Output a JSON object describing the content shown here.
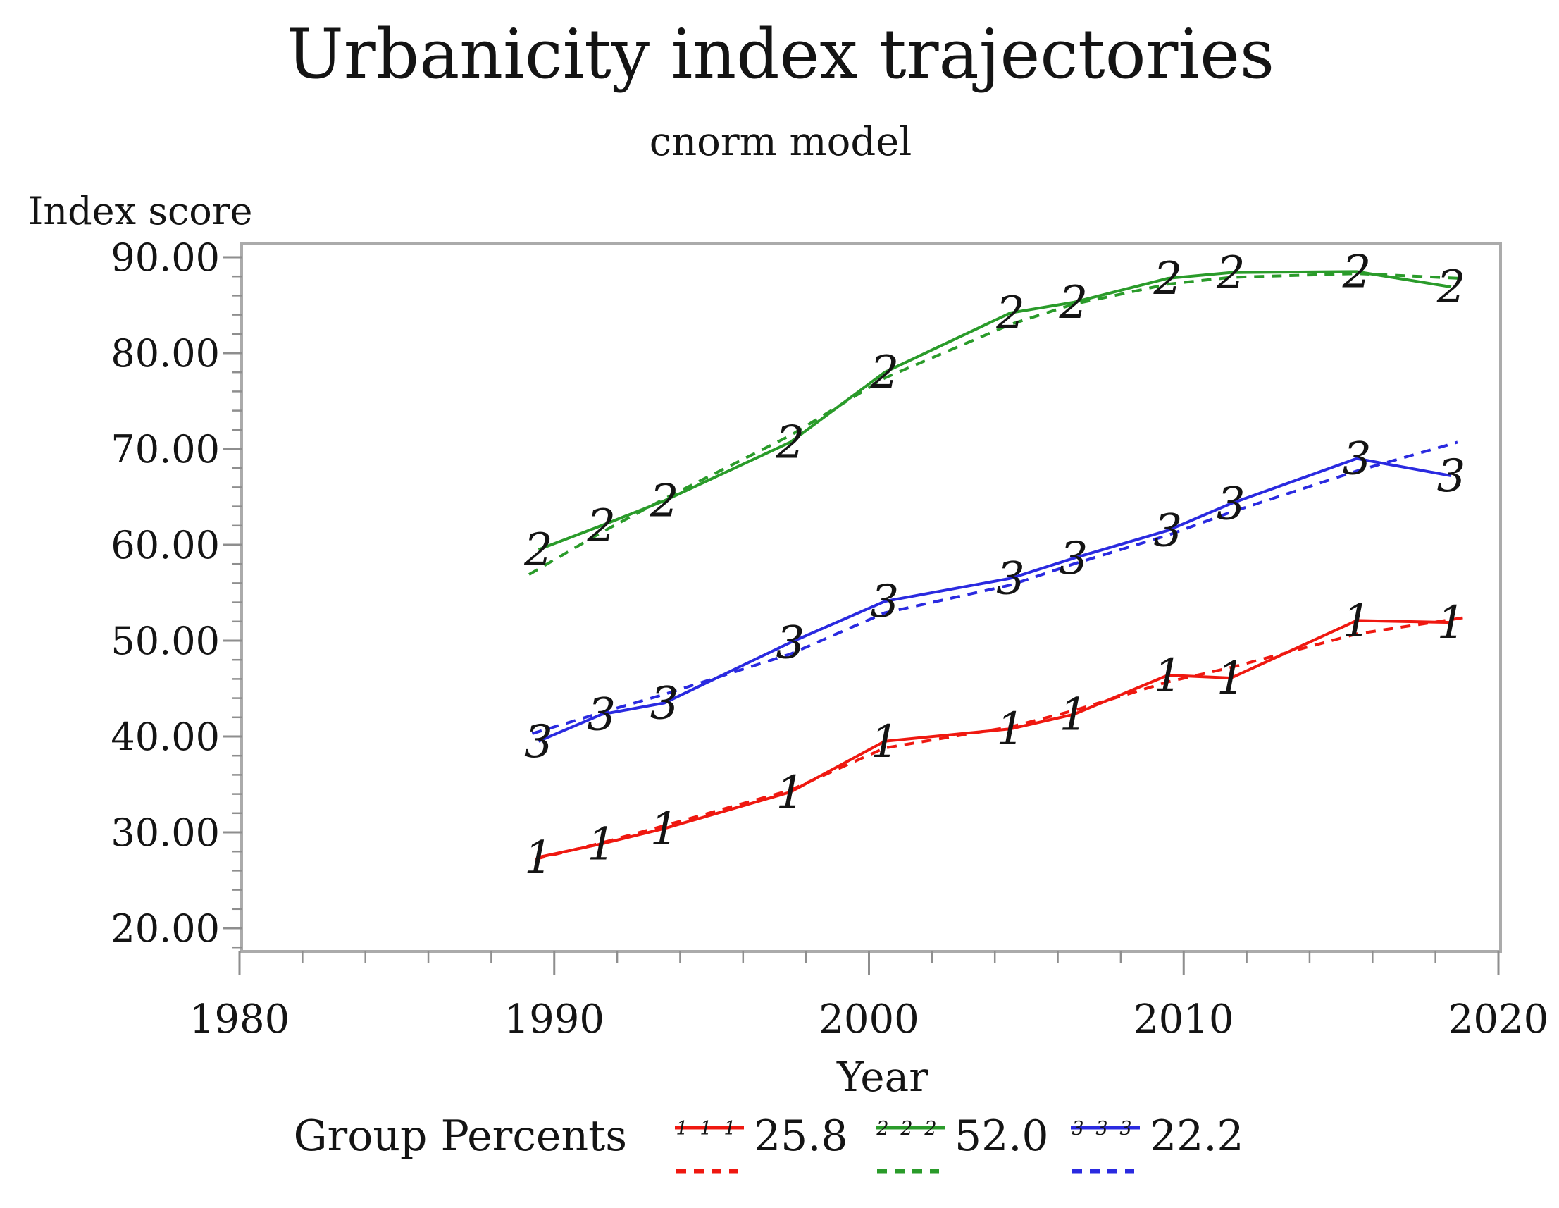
{
  "chart_data": {
    "type": "line",
    "title": "Urbanicity index trajectories",
    "subtitle": "cnorm model",
    "xlabel": "Year",
    "ylabel": "Index score",
    "xlim": [
      1980,
      2020
    ],
    "ylim": [
      17.5,
      91.5
    ],
    "grid": "off",
    "legend_position": "bottom",
    "x_axis": {
      "tick_labels": [
        "1980",
        "1990",
        "2000",
        "2010",
        "2020"
      ],
      "tick_values": [
        1980,
        1990,
        2000,
        2010,
        2020
      ],
      "minor_step": 2,
      "minor_start": 1982,
      "minor_end": 2018
    },
    "y_axis": {
      "tick_labels": [
        "90.00",
        "80.00",
        "70.00",
        "60.00",
        "50.00",
        "40.00",
        "30.00",
        "20.00"
      ],
      "tick_values": [
        90,
        80,
        70,
        60,
        50,
        40,
        30,
        20
      ],
      "minor_step": 2,
      "minor_start": 18,
      "minor_end": 88
    },
    "legend": {
      "label": "Group Percents",
      "entries": [
        {
          "group": "1",
          "percent": "25.8",
          "color": "#ef1810"
        },
        {
          "group": "2",
          "percent": "52.0",
          "color": "#2a9b2a"
        },
        {
          "group": "3",
          "percent": "22.2",
          "color": "#2a2ae0"
        }
      ]
    },
    "series": [
      {
        "name": "Group 1 observed",
        "marker": "1",
        "color": "#ef1810",
        "group_percent": 25.8,
        "observed": {
          "x": [
            1989.5,
            1991.5,
            1993.5,
            1997.5,
            2000.5,
            2004.5,
            2006.5,
            2009.5,
            2011.5,
            2015.5,
            2018.5
          ],
          "y": [
            27.4,
            28.8,
            30.4,
            34.2,
            39.5,
            40.8,
            42.3,
            46.4,
            46.1,
            52.1,
            51.9
          ]
        },
        "fitted": {
          "x": [
            1989.4,
            1991.5,
            1993.5,
            1997.5,
            2000.5,
            2004.5,
            2006.5,
            2009.5,
            2011.5,
            2015.5,
            2018.9
          ],
          "y": [
            27.2,
            28.9,
            30.7,
            34.4,
            38.8,
            41.0,
            42.7,
            45.7,
            47.2,
            50.7,
            52.4
          ]
        }
      },
      {
        "name": "Group 2 observed",
        "marker": "2",
        "color": "#2a9b2a",
        "group_percent": 52.0,
        "observed": {
          "x": [
            1989.5,
            1991.5,
            1993.5,
            1997.5,
            2000.5,
            2004.5,
            2006.5,
            2009.5,
            2011.5,
            2015.5,
            2018.5
          ],
          "y": [
            59.5,
            62.0,
            64.6,
            70.7,
            78.0,
            84.2,
            85.3,
            87.8,
            88.4,
            88.5,
            86.9
          ]
        },
        "fitted": {
          "x": [
            1989.2,
            1991.5,
            1993.5,
            1997.5,
            2000.5,
            2004.5,
            2006.5,
            2009.5,
            2011.5,
            2015.5,
            2018.8
          ],
          "y": [
            56.9,
            61.3,
            64.8,
            71.4,
            77.4,
            83.0,
            85.1,
            87.2,
            87.9,
            88.3,
            87.8
          ]
        }
      },
      {
        "name": "Group 3 observed",
        "marker": "3",
        "color": "#2a2ae0",
        "group_percent": 22.2,
        "observed": {
          "x": [
            1989.5,
            1991.5,
            1993.5,
            1997.5,
            2000.5,
            2004.5,
            2006.5,
            2009.5,
            2011.5,
            2015.5,
            2018.5
          ],
          "y": [
            39.5,
            42.3,
            43.5,
            49.8,
            54.1,
            56.5,
            58.6,
            61.5,
            64.3,
            69.0,
            67.2
          ]
        },
        "fitted": {
          "x": [
            1989.3,
            1991.5,
            1993.5,
            1997.5,
            2000.5,
            2004.5,
            2006.5,
            2009.5,
            2011.5,
            2015.5,
            2018.7
          ],
          "y": [
            40.3,
            42.5,
            44.4,
            48.6,
            52.9,
            55.8,
            58.0,
            61.0,
            63.4,
            67.7,
            70.7
          ]
        }
      }
    ]
  }
}
